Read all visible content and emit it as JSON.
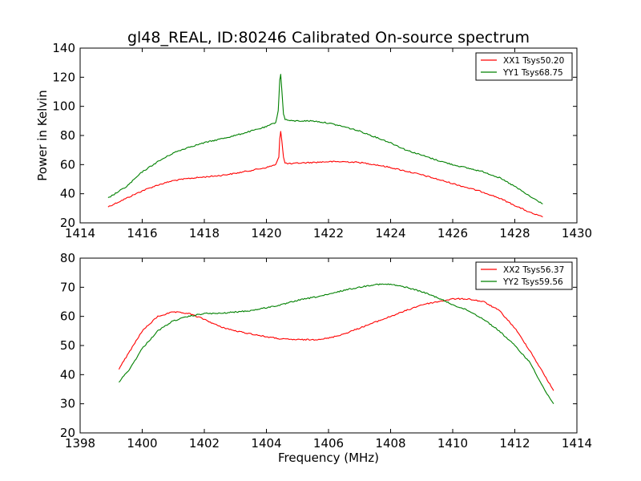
{
  "chart_data": [
    {
      "type": "line",
      "title": "gl48_REAL, ID:80246 Calibrated On-source spectrum",
      "xlabel": "",
      "ylabel": "Power in Kelvin",
      "xlim": [
        1414,
        1430
      ],
      "ylim": [
        20,
        140
      ],
      "xticks": [
        "1414",
        "1416",
        "1418",
        "1420",
        "1422",
        "1424",
        "1426",
        "1428",
        "1430"
      ],
      "yticks": [
        "20",
        "40",
        "60",
        "80",
        "100",
        "120",
        "140"
      ],
      "legend_position": "top-right",
      "series": [
        {
          "name": "XX1 Tsys50.20",
          "color": "#ff0000",
          "points": [
            [
              1414.9,
              31
            ],
            [
              1415.5,
              37
            ],
            [
              1416,
              42
            ],
            [
              1416.5,
              46
            ],
            [
              1417,
              49
            ],
            [
              1417.5,
              50.5
            ],
            [
              1418,
              51.5
            ],
            [
              1418.5,
              52.5
            ],
            [
              1419,
              54
            ],
            [
              1419.5,
              56
            ],
            [
              1420,
              58
            ],
            [
              1420.3,
              60
            ],
            [
              1420.4,
              65
            ],
            [
              1420.43,
              78
            ],
            [
              1420.46,
              83
            ],
            [
              1420.5,
              76
            ],
            [
              1420.55,
              65
            ],
            [
              1420.6,
              61
            ],
            [
              1420.8,
              60.5
            ],
            [
              1421,
              61
            ],
            [
              1421.5,
              61.5
            ],
            [
              1422,
              62
            ],
            [
              1422.5,
              62
            ],
            [
              1423,
              61.5
            ],
            [
              1423.5,
              60
            ],
            [
              1424,
              58
            ],
            [
              1424.5,
              55.5
            ],
            [
              1425,
              53
            ],
            [
              1425.5,
              50
            ],
            [
              1426,
              47
            ],
            [
              1426.5,
              44
            ],
            [
              1427,
              41
            ],
            [
              1427.5,
              37
            ],
            [
              1428,
              32
            ],
            [
              1428.5,
              27
            ],
            [
              1428.9,
              24
            ]
          ]
        },
        {
          "name": "YY1 Tsys68.75",
          "color": "#008000",
          "points": [
            [
              1414.9,
              37
            ],
            [
              1415.5,
              45
            ],
            [
              1416,
              55
            ],
            [
              1416.5,
              62
            ],
            [
              1417,
              68
            ],
            [
              1417.5,
              72
            ],
            [
              1418,
              75
            ],
            [
              1418.5,
              77.5
            ],
            [
              1419,
              80
            ],
            [
              1419.5,
              83
            ],
            [
              1420,
              86
            ],
            [
              1420.3,
              89
            ],
            [
              1420.38,
              97
            ],
            [
              1420.43,
              118
            ],
            [
              1420.46,
              122
            ],
            [
              1420.5,
              110
            ],
            [
              1420.55,
              95
            ],
            [
              1420.6,
              91
            ],
            [
              1420.8,
              90
            ],
            [
              1421,
              90
            ],
            [
              1421.5,
              90
            ],
            [
              1422,
              88.5
            ],
            [
              1422.5,
              86
            ],
            [
              1423,
              83
            ],
            [
              1423.5,
              79
            ],
            [
              1424,
              75
            ],
            [
              1424.5,
              70
            ],
            [
              1425,
              66.5
            ],
            [
              1425.5,
              63
            ],
            [
              1426,
              60
            ],
            [
              1426.5,
              57.5
            ],
            [
              1427,
              55
            ],
            [
              1427.5,
              51
            ],
            [
              1428,
              45
            ],
            [
              1428.5,
              38
            ],
            [
              1428.9,
              33
            ]
          ]
        }
      ]
    },
    {
      "type": "line",
      "title": "",
      "xlabel": "Frequency (MHz)",
      "ylabel": "",
      "xlim": [
        1398,
        1414
      ],
      "ylim": [
        20,
        80
      ],
      "xticks": [
        "1398",
        "1400",
        "1402",
        "1404",
        "1406",
        "1408",
        "1410",
        "1412",
        "1414"
      ],
      "yticks": [
        "20",
        "30",
        "40",
        "50",
        "60",
        "70",
        "80"
      ],
      "legend_position": "top-right",
      "series": [
        {
          "name": "XX2 Tsys56.37",
          "color": "#ff0000",
          "points": [
            [
              1399.25,
              42
            ],
            [
              1399.6,
              48
            ],
            [
              1400,
              55
            ],
            [
              1400.5,
              60
            ],
            [
              1401,
              61.5
            ],
            [
              1401.5,
              61
            ],
            [
              1402,
              59
            ],
            [
              1402.5,
              56.5
            ],
            [
              1403,
              55
            ],
            [
              1403.5,
              54
            ],
            [
              1404,
              53
            ],
            [
              1404.5,
              52.2
            ],
            [
              1405,
              52
            ],
            [
              1405.5,
              52
            ],
            [
              1406,
              52.5
            ],
            [
              1406.5,
              54
            ],
            [
              1407,
              56
            ],
            [
              1407.5,
              58
            ],
            [
              1408,
              60
            ],
            [
              1408.5,
              62
            ],
            [
              1409,
              64
            ],
            [
              1409.5,
              65
            ],
            [
              1410,
              66
            ],
            [
              1410.5,
              66
            ],
            [
              1411,
              65
            ],
            [
              1411.5,
              62
            ],
            [
              1412,
              56
            ],
            [
              1412.5,
              48
            ],
            [
              1413,
              39
            ],
            [
              1413.25,
              34.5
            ]
          ]
        },
        {
          "name": "YY2 Tsys59.56",
          "color": "#008000",
          "points": [
            [
              1399.25,
              37.5
            ],
            [
              1399.6,
              42
            ],
            [
              1400,
              49
            ],
            [
              1400.5,
              55
            ],
            [
              1401,
              58.5
            ],
            [
              1401.5,
              60
            ],
            [
              1402,
              61
            ],
            [
              1402.5,
              61
            ],
            [
              1403,
              61.5
            ],
            [
              1403.5,
              62
            ],
            [
              1404,
              63
            ],
            [
              1404.5,
              64
            ],
            [
              1405,
              65.5
            ],
            [
              1405.5,
              66.5
            ],
            [
              1406,
              67.5
            ],
            [
              1406.5,
              69
            ],
            [
              1407,
              70
            ],
            [
              1407.5,
              71
            ],
            [
              1408,
              71
            ],
            [
              1408.5,
              70
            ],
            [
              1409,
              68.5
            ],
            [
              1409.5,
              66.5
            ],
            [
              1410,
              64
            ],
            [
              1410.5,
              62
            ],
            [
              1411,
              59
            ],
            [
              1411.5,
              55
            ],
            [
              1412,
              50
            ],
            [
              1412.5,
              44
            ],
            [
              1413,
              34
            ],
            [
              1413.25,
              30
            ]
          ]
        }
      ]
    }
  ]
}
